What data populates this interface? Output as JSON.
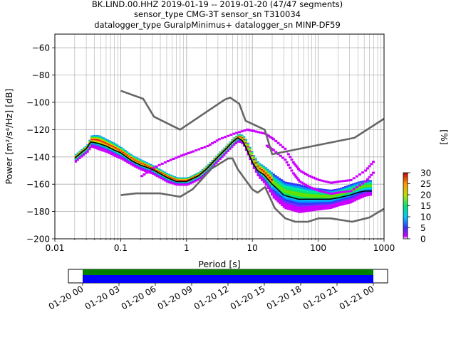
{
  "title_lines": [
    "BK.LIND.00.HHZ   2019-01-19 -- 2019-01-20  (47/47 segments)",
    "sensor_type CMG-3T sensor_sn T310034",
    "datalogger_type GuralpMinimus+ datalogger_sn MINP-DF59"
  ],
  "chart_data": [
    {
      "type": "heatmap",
      "xlabel": "Period [s]",
      "ylabel": "Power [m²/s⁴/Hz] [dB]",
      "x_scale": "log",
      "xlim": [
        0.01,
        1000
      ],
      "ylim": [
        -200,
        -50
      ],
      "x_ticks": [
        0.01,
        0.1,
        1,
        10,
        100,
        1000
      ],
      "x_tick_labels": [
        "0.01",
        "0.1",
        "1",
        "10",
        "100",
        "1000"
      ],
      "y_ticks": [
        -200,
        -180,
        -160,
        -140,
        -120,
        -100,
        -80,
        -60
      ],
      "y_tick_labels": [
        "−200",
        "−180",
        "−160",
        "−140",
        "−120",
        "−100",
        "−80",
        "−60"
      ],
      "grid": true,
      "colorbar": {
        "label": "[%]",
        "range": [
          0,
          30
        ],
        "ticks": [
          0,
          5,
          10,
          15,
          20,
          25,
          30
        ],
        "tick_labels": [
          "0",
          "5",
          "10",
          "15",
          "20",
          "25",
          "30"
        ]
      },
      "series": [
        {
          "role": "high-noise-model",
          "color": "#666666",
          "x": [
            0.1,
            0.22,
            0.32,
            0.8,
            3.8,
            4.6,
            6.3,
            7.9,
            15.4,
            20,
            354.8,
            1000
          ],
          "y": [
            -91.5,
            -97.4,
            -110.5,
            -120,
            -98,
            -96.5,
            -101,
            -113.5,
            -120,
            -138,
            -126,
            -112
          ]
        },
        {
          "role": "low-noise-model",
          "color": "#666666",
          "x": [
            0.1,
            0.17,
            0.4,
            0.8,
            1.24,
            2.4,
            4.3,
            5,
            6,
            10,
            12,
            15.6,
            21.9,
            31.6,
            45,
            70,
            101,
            154,
            328,
            600,
            1000
          ],
          "y": [
            -168,
            -166.7,
            -166.7,
            -169.2,
            -163.7,
            -148.6,
            -141.1,
            -141.1,
            -149,
            -163.8,
            -166.2,
            -162.1,
            -177.5,
            -185,
            -187.5,
            -187.5,
            -185,
            -185,
            -187.5,
            -184.4,
            -178
          ]
        },
        {
          "role": "mode",
          "color": "#000000",
          "x": [
            0.02,
            0.025,
            0.03,
            0.035,
            0.045,
            0.06,
            0.08,
            0.1,
            0.15,
            0.2,
            0.3,
            0.5,
            0.7,
            1,
            1.5,
            2,
            3,
            4,
            5,
            6,
            7,
            8,
            10,
            12,
            15,
            20,
            30,
            50,
            70,
            100,
            150,
            200,
            300,
            400,
            500,
            650
          ],
          "y": [
            -141,
            -137,
            -134,
            -129,
            -130,
            -132,
            -135,
            -137,
            -143,
            -146,
            -149,
            -155,
            -158,
            -158,
            -154,
            -149,
            -140,
            -134,
            -129,
            -126,
            -128,
            -133,
            -144,
            -150,
            -153,
            -160,
            -168,
            -171,
            -171,
            -171,
            -171,
            -170,
            -168,
            -166,
            -165,
            -165
          ]
        }
      ],
      "density_band": {
        "color_low": "#cc00ff",
        "color_high": "#e00000",
        "x": [
          0.02,
          0.025,
          0.03,
          0.035,
          0.045,
          0.06,
          0.08,
          0.1,
          0.15,
          0.2,
          0.3,
          0.5,
          0.7,
          1,
          1.5,
          2,
          3,
          4,
          5,
          6,
          7,
          8,
          10,
          12,
          15,
          20,
          30,
          50,
          70,
          100,
          150,
          200,
          300,
          400,
          500,
          650
        ],
        "upper": [
          -138,
          -134,
          -131,
          -124,
          -124,
          -127,
          -130,
          -133,
          -139,
          -142,
          -146,
          -152,
          -155,
          -155,
          -151,
          -146,
          -137,
          -131,
          -126,
          -123,
          -124,
          -128,
          -138,
          -144,
          -147,
          -152,
          -158,
          -160,
          -162,
          -163,
          -164,
          -163,
          -160,
          -158,
          -157,
          -157
        ],
        "lower": [
          -144,
          -140,
          -137,
          -133,
          -135,
          -137,
          -140,
          -142,
          -147,
          -150,
          -153,
          -159,
          -161,
          -161,
          -157,
          -152,
          -143,
          -137,
          -132,
          -129,
          -131,
          -137,
          -148,
          -155,
          -160,
          -170,
          -178,
          -181,
          -180,
          -179,
          -178,
          -176,
          -174,
          -171,
          -169,
          -168
        ]
      },
      "scatter_branch": {
        "color": "#cc00ff",
        "x": [
          0.2,
          0.3,
          0.5,
          0.8,
          1.2,
          2,
          3,
          5,
          8,
          10,
          15,
          20,
          30,
          40,
          50,
          70,
          100,
          150,
          200,
          300,
          500,
          700
        ],
        "y": [
          -154,
          -148,
          -143,
          -139,
          -136,
          -132,
          -127,
          -123,
          -120,
          -121,
          -123,
          -127,
          -134,
          -144,
          -150,
          -154,
          -157,
          -159,
          -158,
          -157,
          -150,
          -142
        ]
      }
    },
    {
      "type": "timeline",
      "x_tick_labels": [
        "01-20 00",
        "01-20 03",
        "01-20 06",
        "01-20 09",
        "01-20 12",
        "01-20 15",
        "01-20 18",
        "01-20 21",
        "01-21 00"
      ],
      "bars": [
        {
          "role": "data",
          "color": "#008000"
        },
        {
          "role": "used",
          "color": "#0000ff"
        }
      ]
    }
  ]
}
